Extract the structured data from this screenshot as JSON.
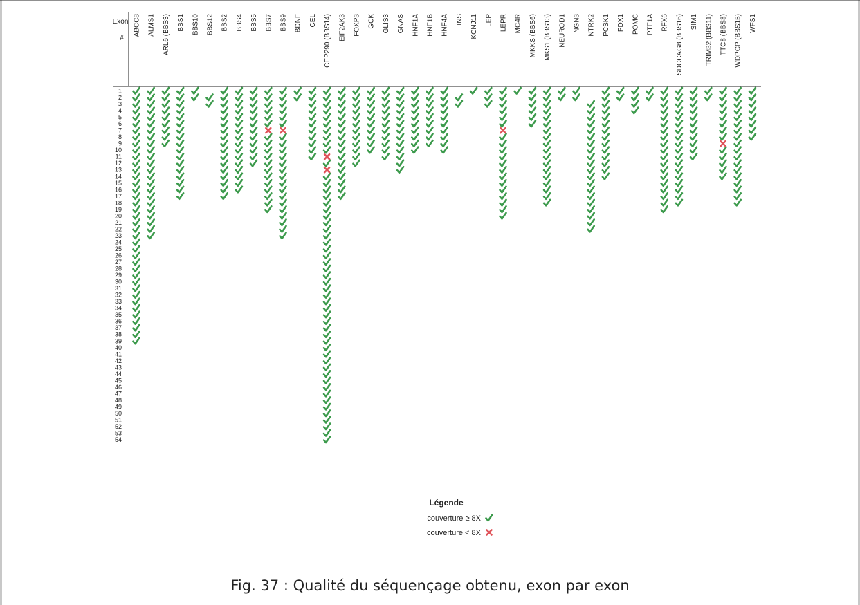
{
  "chart_data": {
    "type": "table",
    "row_header_label": "Exon",
    "row_header_sub": "#",
    "exon_numbers": [
      1,
      2,
      3,
      4,
      5,
      6,
      7,
      8,
      9,
      10,
      11,
      12,
      13,
      14,
      15,
      16,
      17,
      18,
      19,
      20,
      21,
      22,
      23,
      24,
      25,
      26,
      27,
      28,
      29,
      30,
      31,
      32,
      33,
      34,
      35,
      36,
      37,
      38,
      39,
      40,
      41,
      42,
      43,
      44,
      45,
      46,
      47,
      48,
      49,
      50,
      51,
      52,
      53,
      54
    ],
    "genes": [
      {
        "name": "ABCC8",
        "exons": [
          1,
          2,
          3,
          4,
          5,
          6,
          7,
          8,
          9,
          10,
          11,
          12,
          13,
          14,
          15,
          16,
          17,
          18,
          19,
          20,
          21,
          22,
          23,
          24,
          25,
          26,
          27,
          28,
          29,
          30,
          31,
          32,
          33,
          34,
          35,
          36,
          37,
          38,
          39
        ],
        "low": []
      },
      {
        "name": "ALMS1",
        "exons": [
          1,
          2,
          3,
          4,
          5,
          6,
          7,
          8,
          9,
          10,
          11,
          12,
          13,
          14,
          15,
          16,
          17,
          18,
          19,
          20,
          21,
          22,
          23
        ],
        "low": []
      },
      {
        "name": "ARL6 (BBS3)",
        "exons": [
          1,
          2,
          3,
          4,
          5,
          6,
          7,
          8,
          9
        ],
        "low": []
      },
      {
        "name": "BBS1",
        "exons": [
          1,
          2,
          3,
          4,
          5,
          6,
          7,
          8,
          9,
          10,
          11,
          12,
          13,
          14,
          15,
          16,
          17
        ],
        "low": []
      },
      {
        "name": "BBS10",
        "exons": [
          1,
          2
        ],
        "low": []
      },
      {
        "name": "BBS12",
        "exons": [
          2,
          3
        ],
        "low": []
      },
      {
        "name": "BBS2",
        "exons": [
          1,
          2,
          3,
          4,
          5,
          6,
          7,
          8,
          9,
          10,
          11,
          12,
          13,
          14,
          15,
          16,
          17
        ],
        "low": []
      },
      {
        "name": "BBS4",
        "exons": [
          1,
          2,
          3,
          4,
          5,
          6,
          7,
          8,
          9,
          10,
          11,
          12,
          13,
          14,
          15,
          16
        ],
        "low": []
      },
      {
        "name": "BBS5",
        "exons": [
          1,
          2,
          3,
          4,
          5,
          6,
          7,
          8,
          9,
          10,
          11,
          12
        ],
        "low": []
      },
      {
        "name": "BBS7",
        "exons": [
          1,
          2,
          3,
          4,
          5,
          6,
          8,
          9,
          10,
          11,
          12,
          13,
          14,
          15,
          16,
          17,
          18,
          19
        ],
        "low": [
          7
        ]
      },
      {
        "name": "BBS9",
        "exons": [
          1,
          2,
          3,
          4,
          5,
          6,
          8,
          9,
          10,
          11,
          12,
          13,
          14,
          15,
          16,
          17,
          18,
          19,
          20,
          21,
          22,
          23
        ],
        "low": [
          7
        ]
      },
      {
        "name": "BDNF",
        "exons": [
          1,
          2
        ],
        "low": []
      },
      {
        "name": "CEL",
        "exons": [
          1,
          2,
          3,
          4,
          5,
          6,
          7,
          8,
          9,
          10,
          11
        ],
        "low": []
      },
      {
        "name": "CEP290 (BBS14)",
        "exons": [
          1,
          2,
          3,
          4,
          5,
          6,
          7,
          8,
          9,
          10,
          12,
          14,
          15,
          16,
          17,
          18,
          19,
          20,
          21,
          22,
          23,
          24,
          25,
          26,
          27,
          28,
          29,
          30,
          31,
          32,
          33,
          34,
          35,
          36,
          37,
          38,
          39,
          40,
          41,
          42,
          43,
          44,
          45,
          46,
          47,
          48,
          49,
          50,
          51,
          52,
          53,
          54
        ],
        "low": [
          11,
          13
        ]
      },
      {
        "name": "EIF2AK3",
        "exons": [
          1,
          2,
          3,
          4,
          5,
          6,
          7,
          8,
          9,
          10,
          11,
          12,
          13,
          14,
          15,
          16,
          17
        ],
        "low": []
      },
      {
        "name": "FOXP3",
        "exons": [
          1,
          2,
          3,
          4,
          5,
          6,
          7,
          8,
          9,
          10,
          11,
          12
        ],
        "low": []
      },
      {
        "name": "GCK",
        "exons": [
          1,
          2,
          3,
          4,
          5,
          6,
          7,
          8,
          9,
          10
        ],
        "low": []
      },
      {
        "name": "GLIS3",
        "exons": [
          1,
          2,
          3,
          4,
          5,
          6,
          7,
          8,
          9,
          10,
          11
        ],
        "low": []
      },
      {
        "name": "GNAS",
        "exons": [
          1,
          2,
          3,
          4,
          5,
          6,
          7,
          8,
          9,
          10,
          11,
          12,
          13
        ],
        "low": []
      },
      {
        "name": "HNF1A",
        "exons": [
          1,
          2,
          3,
          4,
          5,
          6,
          7,
          8,
          9,
          10
        ],
        "low": []
      },
      {
        "name": "HNF1B",
        "exons": [
          1,
          2,
          3,
          4,
          5,
          6,
          7,
          8,
          9
        ],
        "low": []
      },
      {
        "name": "HNF4A",
        "exons": [
          1,
          2,
          3,
          4,
          5,
          6,
          7,
          8,
          9,
          10
        ],
        "low": []
      },
      {
        "name": "INS",
        "exons": [
          2,
          3
        ],
        "low": []
      },
      {
        "name": "KCNJ11",
        "exons": [
          1
        ],
        "low": []
      },
      {
        "name": "LEP",
        "exons": [
          1,
          2,
          3
        ],
        "low": []
      },
      {
        "name": "LEPR",
        "exons": [
          1,
          2,
          3,
          4,
          5,
          6,
          8,
          9,
          10,
          11,
          12,
          13,
          14,
          15,
          16,
          17,
          18,
          19,
          20
        ],
        "low": [
          7
        ]
      },
      {
        "name": "MC4R",
        "exons": [
          1
        ],
        "low": []
      },
      {
        "name": "MKKS (BBS6)",
        "exons": [
          1,
          2,
          3,
          4,
          5,
          6
        ],
        "low": []
      },
      {
        "name": "MKS1 (BBS13)",
        "exons": [
          1,
          2,
          3,
          4,
          5,
          6,
          7,
          8,
          9,
          10,
          11,
          12,
          13,
          14,
          15,
          16,
          17,
          18
        ],
        "low": []
      },
      {
        "name": "NEUROD1",
        "exons": [
          1,
          2
        ],
        "low": []
      },
      {
        "name": "NGN3",
        "exons": [
          1,
          2
        ],
        "low": []
      },
      {
        "name": "NTRK2",
        "exons": [
          3,
          4,
          5,
          6,
          7,
          8,
          9,
          10,
          11,
          12,
          13,
          14,
          15,
          16,
          17,
          18,
          19,
          20,
          21,
          22
        ],
        "low": []
      },
      {
        "name": "PCSK1",
        "exons": [
          1,
          2,
          3,
          4,
          5,
          6,
          7,
          8,
          9,
          10,
          11,
          12,
          13,
          14
        ],
        "low": []
      },
      {
        "name": "PDX1",
        "exons": [
          1,
          2
        ],
        "low": []
      },
      {
        "name": "POMC",
        "exons": [
          1,
          2,
          3,
          4
        ],
        "low": []
      },
      {
        "name": "PTF1A",
        "exons": [
          1,
          2
        ],
        "low": []
      },
      {
        "name": "RFX6",
        "exons": [
          1,
          2,
          3,
          4,
          5,
          6,
          7,
          8,
          9,
          10,
          11,
          12,
          13,
          14,
          15,
          16,
          17,
          18,
          19
        ],
        "low": []
      },
      {
        "name": "SDCCAG8 (BBS16)",
        "exons": [
          1,
          2,
          3,
          4,
          5,
          6,
          7,
          8,
          9,
          10,
          11,
          12,
          13,
          14,
          15,
          16,
          17,
          18
        ],
        "low": []
      },
      {
        "name": "SIM1",
        "exons": [
          1,
          2,
          3,
          4,
          5,
          6,
          7,
          8,
          9,
          10,
          11
        ],
        "low": []
      },
      {
        "name": "TRIM32 (BBS11)",
        "exons": [
          1,
          2
        ],
        "low": []
      },
      {
        "name": "TTC8 (BBS8)",
        "exons": [
          1,
          2,
          3,
          4,
          5,
          6,
          7,
          8,
          10,
          11,
          12,
          13,
          14
        ],
        "low": [
          9
        ]
      },
      {
        "name": "WDPCP (BBS15)",
        "exons": [
          1,
          2,
          3,
          4,
          5,
          6,
          7,
          8,
          9,
          10,
          11,
          12,
          13,
          14,
          15,
          16,
          17,
          18
        ],
        "low": []
      },
      {
        "name": "WFS1",
        "exons": [
          1,
          2,
          3,
          4,
          5,
          6,
          7,
          8
        ],
        "low": []
      }
    ],
    "legend": {
      "title": "Légende",
      "items": [
        {
          "label": "couverture ≥ 8X",
          "symbol": "check",
          "color": "#3c9a4c"
        },
        {
          "label": "couverture < 8X",
          "symbol": "cross",
          "color": "#e0545a"
        }
      ]
    }
  },
  "caption": "Fig. 37 : Qualité du séquençage obtenu, exon par exon",
  "colors": {
    "check": "#3c9a4c",
    "cross": "#e0545a",
    "border": "#222222",
    "text": "#222222"
  }
}
